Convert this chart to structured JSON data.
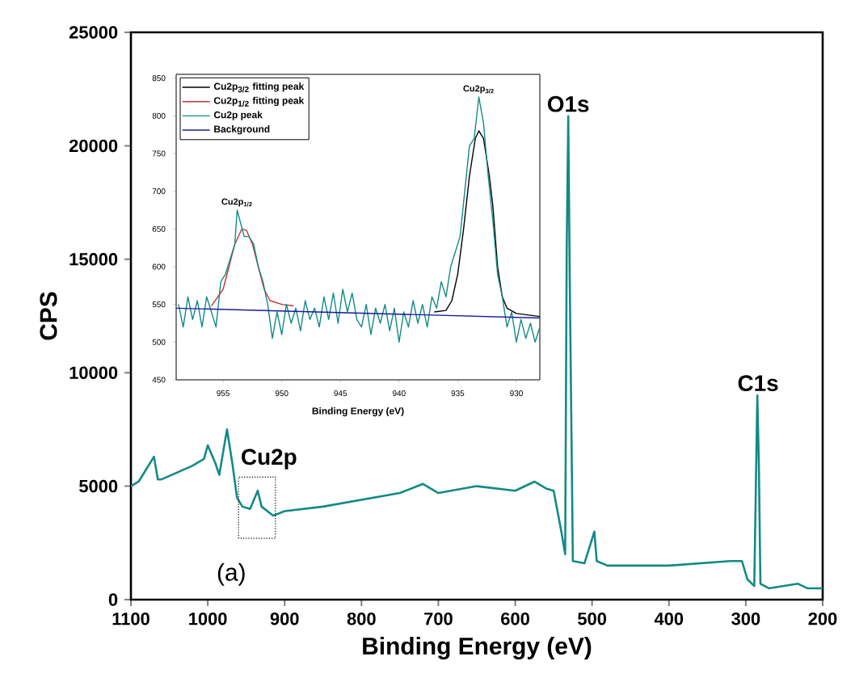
{
  "chart_data": [
    {
      "type": "line",
      "xlabel": "Binding Energy (eV)",
      "ylabel": "CPS",
      "xlim": [
        1100,
        200
      ],
      "ylim": [
        0,
        25000
      ],
      "xticks": [
        1100,
        1000,
        900,
        800,
        700,
        600,
        500,
        400,
        300,
        200
      ],
      "yticks": [
        0,
        5000,
        10000,
        15000,
        20000,
        25000
      ],
      "series": [
        {
          "color": "#138a86",
          "x": [
            1100,
            1090,
            1070,
            1065,
            1060,
            1040,
            1020,
            1005,
            1000,
            990,
            985,
            975,
            968,
            962,
            955,
            945,
            935,
            930,
            915,
            900,
            850,
            800,
            750,
            720,
            700,
            650,
            600,
            575,
            560,
            550,
            540,
            535,
            533,
            531,
            529,
            525,
            510,
            497,
            494,
            480,
            400,
            320,
            305,
            298,
            289,
            285,
            283,
            281,
            270,
            232,
            220,
            200
          ],
          "values": [
            5000,
            5200,
            6300,
            5300,
            5300,
            5600,
            5900,
            6200,
            6800,
            6000,
            5500,
            7500,
            6000,
            4500,
            4100,
            4000,
            4800,
            4100,
            3700,
            3900,
            4100,
            4400,
            4700,
            5100,
            4700,
            5000,
            4800,
            5200,
            4900,
            4800,
            3000,
            2000,
            15500,
            21300,
            14000,
            1700,
            1600,
            3000,
            1700,
            1500,
            1500,
            1700,
            1700,
            900,
            600,
            9000,
            6000,
            700,
            500,
            700,
            500,
            500
          ]
        }
      ],
      "annotations": [
        {
          "text": "O1s",
          "x": 531,
          "y": 21300
        },
        {
          "text": "C1s",
          "x": 284,
          "y": 9000
        },
        "Cu2p",
        "(a)"
      ]
    },
    {
      "type": "line",
      "xlabel": "Binding Energy (eV)",
      "xlim": [
        959,
        928
      ],
      "ylim": [
        450,
        855
      ],
      "xticks": [
        955,
        950,
        945,
        940,
        935,
        930
      ],
      "yticks": [
        450,
        500,
        550,
        600,
        650,
        700,
        750,
        800,
        850
      ],
      "legend": "top left",
      "series": [
        {
          "name": "Cu2p$_{3/2}$ fitting peak",
          "color": "#000000",
          "x": [
            937,
            936,
            935.5,
            935,
            934.5,
            934,
            933.5,
            933.2,
            932.8,
            932.3,
            932,
            931.6,
            931.2,
            930.8,
            930,
            928
          ],
          "values": [
            540,
            542,
            555,
            590,
            650,
            720,
            770,
            780,
            770,
            720,
            680,
            600,
            560,
            545,
            538,
            534
          ]
        },
        {
          "name": "Cu2p$_{1/2}$ fitting peak",
          "color": "#c83232",
          "x": [
            956,
            955,
            954.5,
            954,
            953.4,
            953,
            952.5,
            952,
            951.5,
            951,
            950,
            949
          ],
          "values": [
            548,
            570,
            600,
            630,
            650,
            648,
            630,
            600,
            570,
            555,
            550,
            548
          ]
        },
        {
          "name": "Cu2p peak",
          "color": "#138a86",
          "x": [
            958.8,
            958.4,
            958,
            957.6,
            957.2,
            956.8,
            956.4,
            956,
            955.6,
            955.2,
            954.8,
            954.4,
            954,
            953.8,
            953.2,
            952.8,
            952.4,
            952,
            951.6,
            951.2,
            950.8,
            950.4,
            950,
            949.6,
            949.2,
            948.8,
            948.4,
            948,
            947.6,
            947.2,
            946.8,
            946.4,
            946,
            945.6,
            945.2,
            944.8,
            944.4,
            944,
            943.6,
            943.2,
            942.8,
            942.4,
            942,
            941.6,
            941.2,
            940.8,
            940.4,
            940,
            939.6,
            939.2,
            938.8,
            938.4,
            938,
            937.6,
            937.2,
            936.8,
            936.4,
            936,
            935.6,
            935.2,
            934.8,
            934.4,
            934,
            933.6,
            933.2,
            932.8,
            932.4,
            932,
            931.6,
            931.2,
            930.8,
            930.4,
            930,
            929.6,
            929.2,
            928.8,
            928.4,
            928
          ],
          "values": [
            550,
            520,
            560,
            530,
            555,
            520,
            560,
            540,
            520,
            580,
            590,
            610,
            630,
            675,
            640,
            640,
            630,
            600,
            580,
            550,
            505,
            540,
            510,
            550,
            525,
            545,
            515,
            555,
            530,
            545,
            520,
            560,
            530,
            565,
            525,
            570,
            540,
            565,
            530,
            520,
            550,
            510,
            545,
            525,
            550,
            515,
            545,
            500,
            540,
            520,
            555,
            525,
            550,
            520,
            560,
            545,
            580,
            560,
            600,
            620,
            640,
            700,
            760,
            770,
            825,
            790,
            720,
            660,
            590,
            560,
            520,
            540,
            500,
            530,
            505,
            525,
            500,
            520
          ]
        },
        {
          "name": "Background",
          "color": "#1a1aa0",
          "x": [
            959,
            928
          ],
          "values": [
            545,
            532
          ]
        }
      ],
      "annotations": [
        {
          "text": "Cu2p$_{3/2}$",
          "x": 933.2,
          "y": 825
        },
        {
          "text": "Cu2p$_{1/2}$",
          "x": 953.8,
          "y": 675
        }
      ]
    }
  ]
}
